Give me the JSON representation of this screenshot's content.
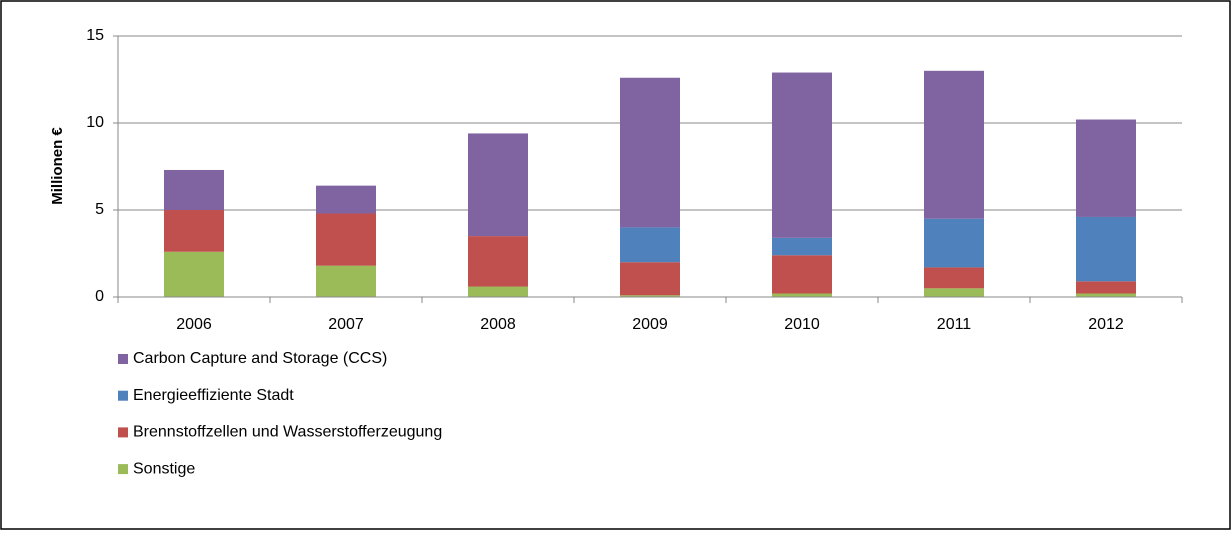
{
  "chart_data": {
    "type": "stacked_bar",
    "y_label": "Millionen €",
    "categories": [
      "2006",
      "2007",
      "2008",
      "2009",
      "2010",
      "2011",
      "2012"
    ],
    "series": [
      {
        "name": "Carbon Capture and Storage (CCS)",
        "color": "#8064a2",
        "values": [
          2.3,
          1.6,
          5.9,
          8.6,
          9.5,
          8.5,
          5.6
        ]
      },
      {
        "name": "Energieeffiziente Stadt",
        "color": "#4f81bd",
        "values": [
          0,
          0,
          0,
          2.0,
          1.0,
          2.8,
          3.7
        ]
      },
      {
        "name": "Brennstoffzellen und Wasserstofferzeugung",
        "color": "#c0504d",
        "values": [
          2.4,
          3.0,
          2.9,
          1.9,
          2.2,
          1.2,
          0.7
        ]
      },
      {
        "name": "Sonstige",
        "color": "#9bbb59",
        "values": [
          2.6,
          1.8,
          0.6,
          0.1,
          0.2,
          0.5,
          0.2
        ]
      }
    ],
    "ylim": [
      0,
      15
    ],
    "yticks": [
      0,
      5,
      10,
      15
    ],
    "grid": true
  }
}
